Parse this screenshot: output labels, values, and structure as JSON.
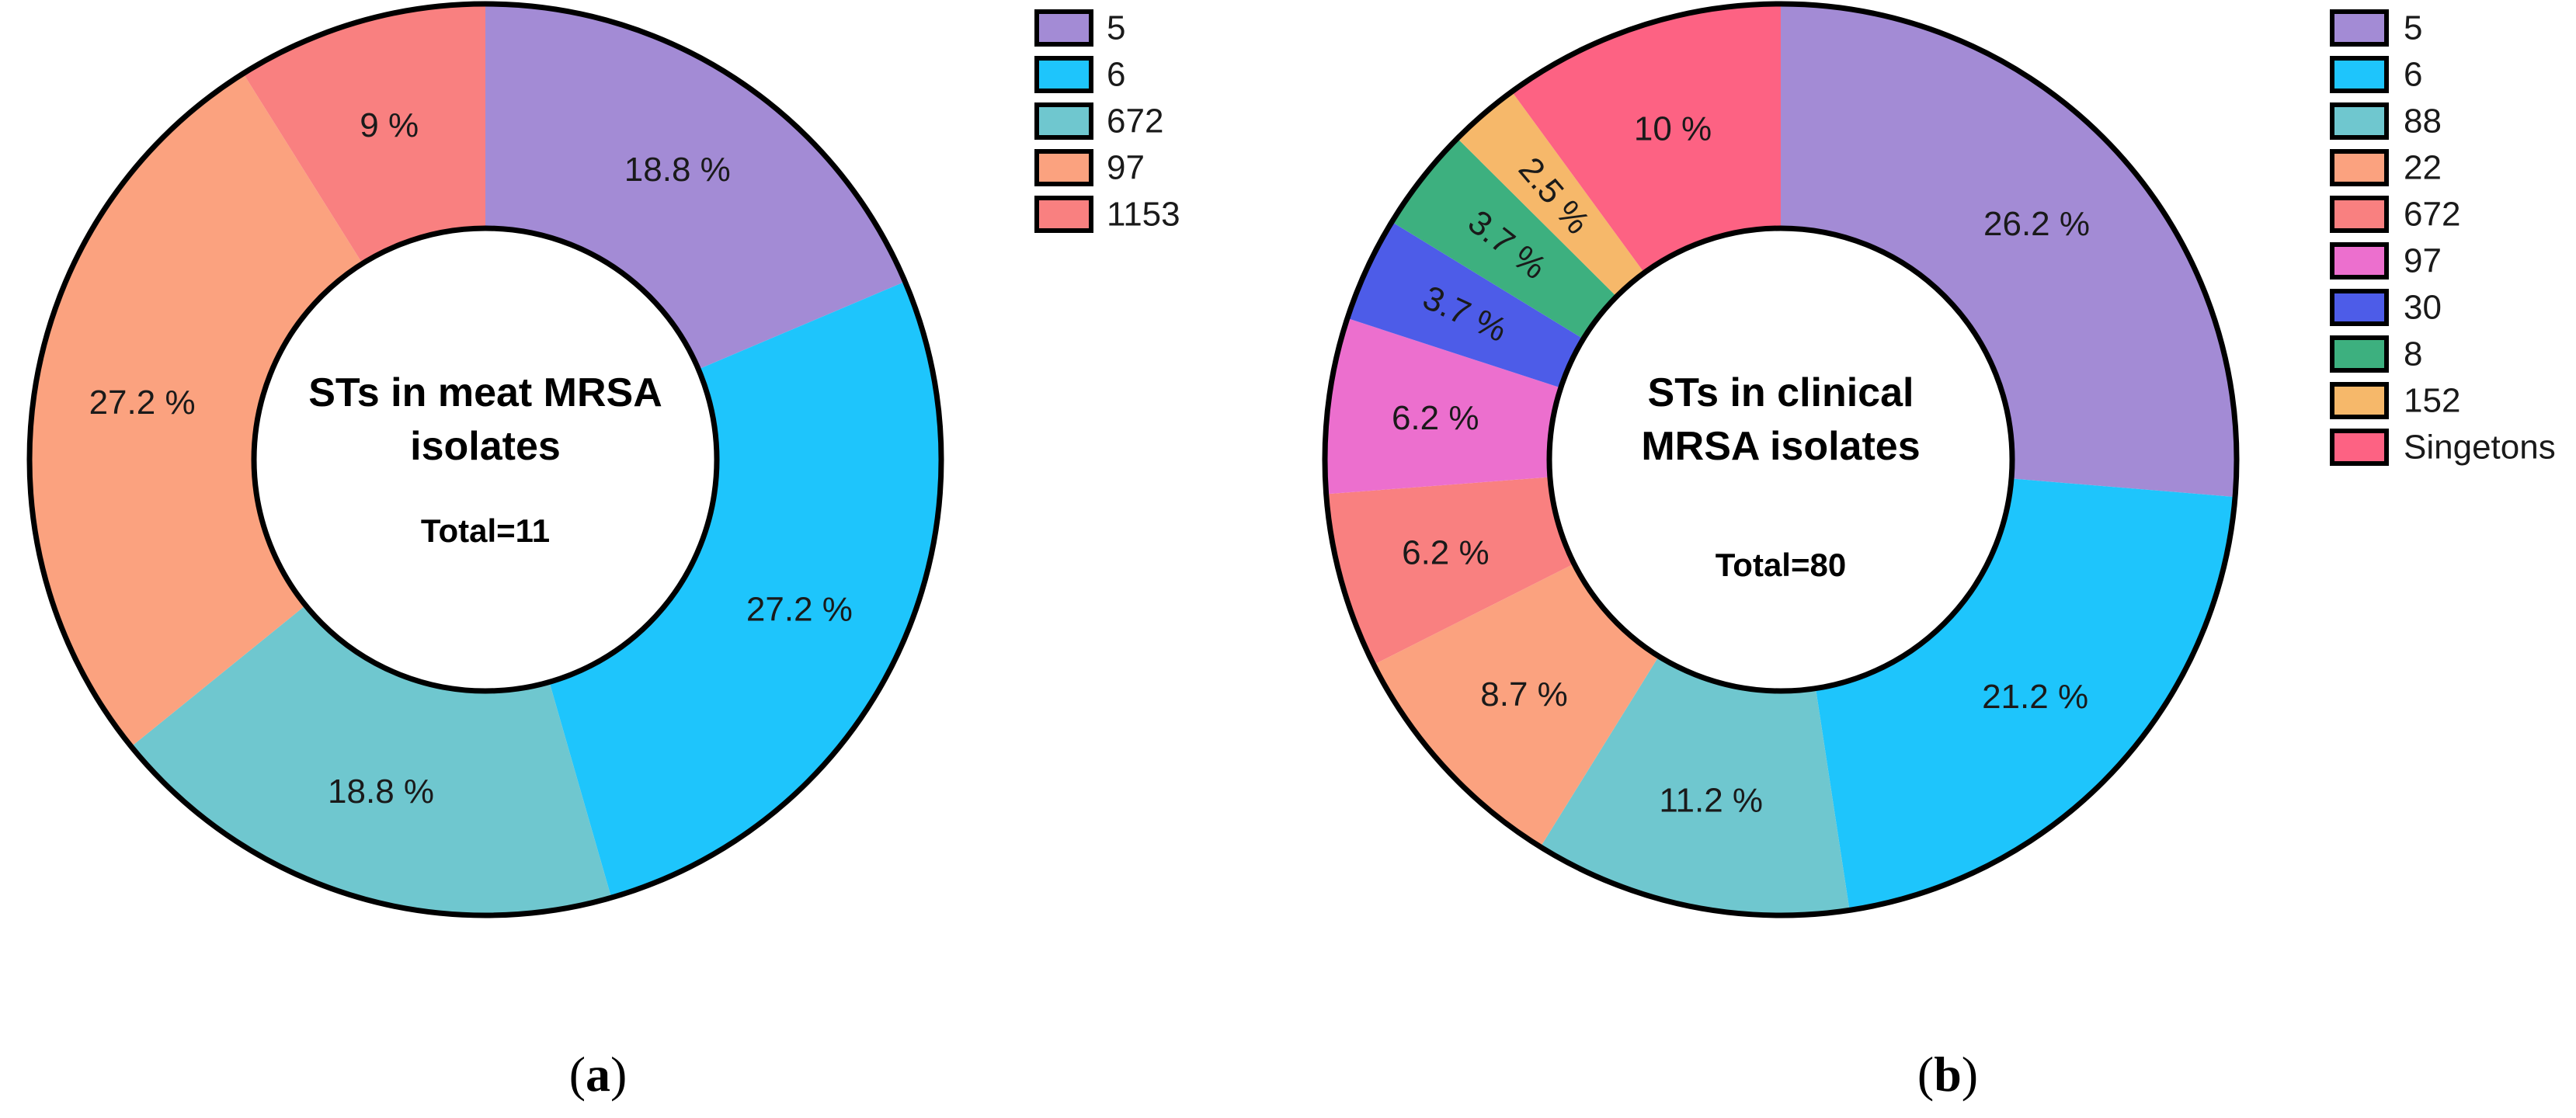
{
  "chart_data": [
    {
      "type": "pie",
      "donut": true,
      "panel_label": "a",
      "title_lines": [
        "STs in meat MRSA",
        "isolates"
      ],
      "total_label": "Total=11",
      "slices": [
        {
          "name": "5",
          "value": 18.8,
          "label": "18.8 %",
          "color": "#A38BD5"
        },
        {
          "name": "6",
          "value": 27.2,
          "label": "27.2 %",
          "color": "#1EC5FC"
        },
        {
          "name": "672",
          "value": 18.8,
          "label": "18.8 %",
          "color": "#6FC7CF"
        },
        {
          "name": "97",
          "value": 27.2,
          "label": "27.2 %",
          "color": "#FBA27F"
        },
        {
          "name": "1153",
          "value": 9,
          "label": "9 %",
          "color": "#F98080"
        }
      ],
      "legend_position": "top-right"
    },
    {
      "type": "pie",
      "donut": true,
      "panel_label": "b",
      "title_lines": [
        "STs in clinical",
        "MRSA isolates"
      ],
      "total_label": "Total=80",
      "slices": [
        {
          "name": "5",
          "value": 26.2,
          "label": "26.2 %",
          "color": "#A38BD5"
        },
        {
          "name": "6",
          "value": 21.2,
          "label": "21.2 %",
          "color": "#1EC5FC"
        },
        {
          "name": "88",
          "value": 11.2,
          "label": "11.2 %",
          "color": "#6FC7CF"
        },
        {
          "name": "22",
          "value": 8.7,
          "label": "8.7 %",
          "color": "#FBA27F"
        },
        {
          "name": "672",
          "value": 6.2,
          "label": "6.2 %",
          "color": "#F98080"
        },
        {
          "name": "97",
          "value": 6.2,
          "label": "6.2 %",
          "color": "#EC6FCE"
        },
        {
          "name": "30",
          "value": 3.7,
          "label": "3.7 %",
          "color": "#4D5CE8"
        },
        {
          "name": "8",
          "value": 3.7,
          "label": "3.7 %",
          "color": "#3DB07F"
        },
        {
          "name": "152",
          "value": 2.5,
          "label": "2.5 %",
          "color": "#F6B86A"
        },
        {
          "name": "Singetons",
          "value": 10,
          "label": "10 %",
          "color": "#FD6283"
        }
      ],
      "legend_position": "top-right"
    }
  ]
}
